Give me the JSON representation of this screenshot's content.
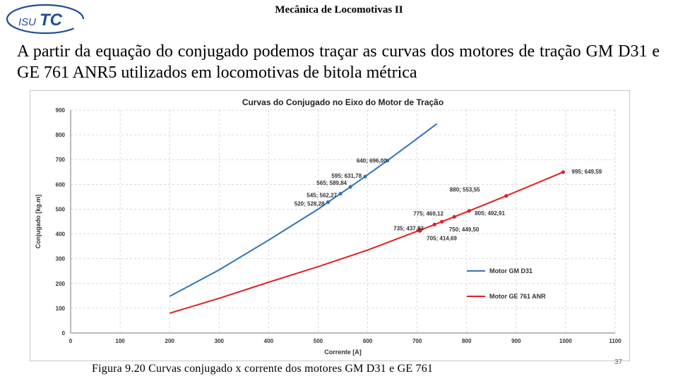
{
  "header": {
    "logo_text_isu": "ISU",
    "logo_text_tc": "TC",
    "title": "Mecânica de Locomotivas II"
  },
  "intro": {
    "text": "A partir da equação do conjugado podemos traçar as curvas dos motores de tração GM D31 e GE 761 ANR5 utilizados em locomotivas de bitola métrica"
  },
  "chart_data": {
    "type": "line",
    "title": "Curvas do Conjugado no Eixo do Motor de Tração",
    "xlabel": "Corrente [A]",
    "ylabel": "Conjugado [kg.m]",
    "xlim": [
      0,
      1100
    ],
    "ylim": [
      0,
      900
    ],
    "xticks": [
      0,
      100,
      200,
      300,
      400,
      500,
      600,
      700,
      800,
      900,
      1000,
      1100
    ],
    "yticks": [
      0,
      100,
      200,
      300,
      400,
      500,
      600,
      700,
      800,
      900
    ],
    "grid": true,
    "legend_position": "bottom-right",
    "series": [
      {
        "name": "Motor GM D31",
        "color": "#2e75b6",
        "x": [
          200,
          300,
          400,
          500,
          520,
          545,
          565,
          595,
          640,
          700,
          740
        ],
        "y": [
          148,
          255,
          375,
          500,
          528.28,
          562.27,
          589.84,
          631.78,
          696.0,
          785,
          845
        ],
        "labeled_points": [
          {
            "x": 520,
            "y": 528.28,
            "label": "520; 528,28"
          },
          {
            "x": 545,
            "y": 562.27,
            "label": "545; 562,27"
          },
          {
            "x": 565,
            "y": 589.84,
            "label": "565; 589,84"
          },
          {
            "x": 595,
            "y": 631.78,
            "label": "595; 631,78"
          },
          {
            "x": 640,
            "y": 696.0,
            "label": "640; 696,00"
          }
        ]
      },
      {
        "name": "Motor GE 761 ANR",
        "color": "#e02020",
        "x": [
          200,
          300,
          400,
          500,
          600,
          705,
          735,
          750,
          775,
          805,
          880,
          995
        ],
        "y": [
          80,
          140,
          205,
          268,
          335,
          414.69,
          437.83,
          449.5,
          469.12,
          492.91,
          553.55,
          649.59
        ],
        "labeled_points": [
          {
            "x": 705,
            "y": 414.69,
            "label": "705; 414,69"
          },
          {
            "x": 735,
            "y": 437.83,
            "label": "735; 437,83"
          },
          {
            "x": 750,
            "y": 449.5,
            "label": "750; 449,50"
          },
          {
            "x": 775,
            "y": 469.12,
            "label": "775; 469,12"
          },
          {
            "x": 805,
            "y": 492.91,
            "label": "805; 492,91"
          },
          {
            "x": 880,
            "y": 553.55,
            "label": "880; 553,55"
          },
          {
            "x": 995,
            "y": 649.59,
            "label": "995; 649,59"
          }
        ]
      }
    ]
  },
  "caption": {
    "text": "Figura 9.20 Curvas conjugado x corrente dos motores GM D31 e GE 761"
  },
  "page_number": "37"
}
